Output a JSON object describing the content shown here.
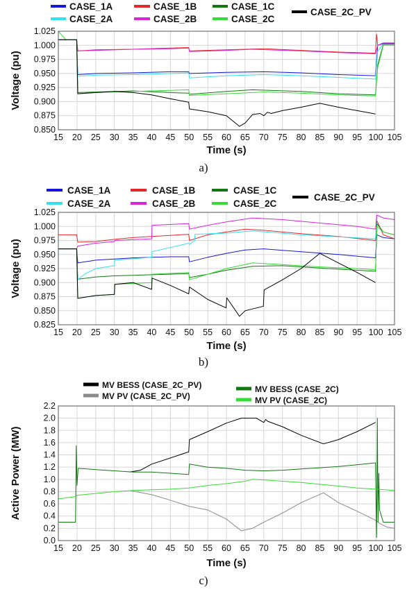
{
  "chart_data": [
    {
      "type": "line",
      "panel_label": "a)",
      "xlabel": "Time (s)",
      "ylabel": "Voltage (pu)",
      "xlim": [
        15,
        105
      ],
      "ylim": [
        0.85,
        1.025
      ],
      "xticks": [
        15,
        20,
        25,
        30,
        35,
        40,
        45,
        50,
        55,
        60,
        65,
        70,
        75,
        80,
        85,
        90,
        95,
        100,
        105
      ],
      "yticks": [
        "0.850",
        "0.875",
        "0.900",
        "0.925",
        "0.950",
        "0.975",
        "1.000",
        "1.025"
      ],
      "grid": true,
      "legend": {
        "location": "top",
        "entries": [
          "CASE_1A",
          "CASE_1B",
          "CASE_1C",
          "CASE_2A",
          "CASE_2B",
          "CASE_2C",
          "CASE_2C_PV"
        ]
      },
      "series": [
        {
          "name": "CASE_1A",
          "color": "#1515dd",
          "x": [
            15,
            17,
            19.9,
            20.2,
            25,
            35,
            45,
            49.9,
            50.1,
            60,
            70,
            80,
            90,
            99.9,
            100.5,
            102,
            105
          ],
          "y": [
            1.01,
            1.01,
            1.01,
            0.948,
            0.95,
            0.951,
            0.953,
            0.953,
            0.95,
            0.952,
            0.953,
            0.951,
            0.948,
            0.946,
            1.0,
            1.004,
            1.004
          ]
        },
        {
          "name": "CASE_1B",
          "color": "#e8262a",
          "x": [
            15,
            17,
            19.9,
            20.2,
            25,
            35,
            45,
            49.9,
            50.1,
            60,
            70,
            80,
            90,
            99.9,
            100.2,
            100.5,
            102,
            105
          ],
          "y": [
            1.01,
            1.01,
            1.01,
            0.99,
            0.992,
            0.993,
            0.995,
            0.996,
            0.99,
            0.992,
            0.994,
            0.991,
            0.988,
            0.986,
            1.02,
            1.0,
            1.003,
            1.003
          ]
        },
        {
          "name": "CASE_1C",
          "color": "#117711",
          "x": [
            15,
            17,
            19.9,
            20.2,
            25,
            35,
            45,
            49.9,
            50.1,
            60,
            67,
            80,
            90,
            99.9,
            100.5,
            102,
            105
          ],
          "y": [
            1.01,
            1.01,
            1.01,
            0.916,
            0.917,
            0.919,
            0.916,
            0.915,
            0.913,
            0.918,
            0.921,
            0.918,
            0.914,
            0.912,
            0.965,
            1.002,
            1.002
          ]
        },
        {
          "name": "CASE_2A",
          "color": "#33e0ee",
          "x": [
            15,
            17,
            19.9,
            20.2,
            25,
            35,
            45,
            49.9,
            50.1,
            60,
            70,
            80,
            90,
            99.9,
            100.5,
            102,
            105
          ],
          "y": [
            1.01,
            1.01,
            1.01,
            0.945,
            0.947,
            0.948,
            0.95,
            0.951,
            0.942,
            0.946,
            0.948,
            0.946,
            0.943,
            0.94,
            0.99,
            1.003,
            1.003
          ]
        },
        {
          "name": "CASE_2B",
          "color": "#dd22dd",
          "x": [
            15,
            17,
            19.9,
            20.2,
            25,
            35,
            45,
            49.9,
            50.1,
            60,
            67,
            80,
            90,
            99.9,
            100.5,
            102,
            105
          ],
          "y": [
            1.01,
            1.01,
            1.01,
            0.99,
            0.991,
            0.993,
            0.994,
            0.995,
            0.989,
            0.991,
            0.993,
            0.99,
            0.987,
            0.985,
            1.0,
            1.003,
            1.003
          ]
        },
        {
          "name": "CASE_2C",
          "color": "#33dd33",
          "x": [
            15,
            17,
            19.9,
            20.2,
            25,
            35,
            45,
            49.9,
            50.1,
            60,
            70,
            80,
            90,
            99.9,
            100.5,
            102,
            105
          ],
          "y": [
            1.025,
            1.01,
            1.01,
            0.914,
            0.916,
            0.918,
            0.92,
            0.921,
            0.911,
            0.914,
            0.917,
            0.915,
            0.912,
            0.91,
            0.96,
            1.0,
            1.0
          ]
        },
        {
          "name": "CASE_2C_PV",
          "color": "#000000",
          "x": [
            15,
            17,
            19.9,
            20.2,
            25,
            30,
            35,
            40,
            45,
            49.9,
            50.1,
            55,
            60,
            63.5,
            65,
            67,
            69,
            70,
            71,
            72,
            75,
            80,
            85,
            90,
            95,
            99.9
          ],
          "y": [
            1.01,
            1.01,
            1.01,
            0.914,
            0.916,
            0.918,
            0.916,
            0.912,
            0.905,
            0.899,
            0.887,
            0.882,
            0.875,
            0.856,
            0.862,
            0.877,
            0.879,
            0.875,
            0.881,
            0.879,
            0.884,
            0.89,
            0.897,
            0.89,
            0.884,
            0.878
          ]
        }
      ]
    },
    {
      "type": "line",
      "panel_label": "b)",
      "xlabel": "Time (s)",
      "ylabel": "Voltage (pu)",
      "xlim": [
        15,
        105
      ],
      "ylim": [
        0.825,
        1.025
      ],
      "xticks": [
        15,
        20,
        25,
        30,
        35,
        40,
        45,
        50,
        55,
        60,
        65,
        70,
        75,
        80,
        85,
        90,
        95,
        100,
        105
      ],
      "yticks": [
        "0.825",
        "0.850",
        "0.875",
        "0.900",
        "0.925",
        "0.950",
        "0.975",
        "1.000",
        "1.025"
      ],
      "grid": true,
      "legend": {
        "location": "top",
        "entries": [
          "CASE_1A",
          "CASE_1B",
          "CASE_1C",
          "CASE_2A",
          "CASE_2B",
          "CASE_2C",
          "CASE_2C_PV"
        ]
      },
      "series": [
        {
          "name": "CASE_1A",
          "color": "#1515dd",
          "x": [
            15,
            17,
            19.9,
            20.2,
            25,
            30,
            35,
            40,
            45,
            49.9,
            50.1,
            55,
            60,
            65,
            70,
            80,
            90,
            99.9,
            100.3,
            102,
            105
          ],
          "y": [
            0.96,
            0.96,
            0.96,
            0.935,
            0.94,
            0.942,
            0.944,
            0.945,
            0.946,
            0.946,
            0.937,
            0.945,
            0.952,
            0.958,
            0.96,
            0.955,
            0.95,
            0.944,
            0.985,
            0.98,
            0.978
          ]
        },
        {
          "name": "CASE_1B",
          "color": "#e8262a",
          "x": [
            15,
            17,
            19.9,
            20.2,
            25,
            30,
            35,
            40,
            45,
            49.9,
            50.1,
            55,
            60,
            65,
            70,
            80,
            90,
            99.9,
            100.3,
            102,
            105
          ],
          "y": [
            0.985,
            0.985,
            0.985,
            0.972,
            0.973,
            0.977,
            0.98,
            0.982,
            0.984,
            0.986,
            0.975,
            0.985,
            0.99,
            0.995,
            0.993,
            0.987,
            0.982,
            0.975,
            1.01,
            0.985,
            0.978
          ]
        },
        {
          "name": "CASE_1C",
          "color": "#117711",
          "x": [
            15,
            17,
            19.9,
            20.2,
            25,
            30,
            35,
            40,
            45,
            49.9,
            50.1,
            55,
            60,
            67,
            75,
            85,
            95,
            99.9,
            100.3,
            102,
            105
          ],
          "y": [
            0.96,
            0.96,
            0.96,
            0.906,
            0.91,
            0.912,
            0.913,
            0.914,
            0.915,
            0.916,
            0.909,
            0.915,
            0.922,
            0.929,
            0.93,
            0.926,
            0.922,
            0.92,
            1.005,
            0.99,
            0.985
          ]
        },
        {
          "name": "CASE_2A",
          "color": "#33e0ee",
          "x": [
            15,
            17,
            19.9,
            20.2,
            22,
            25,
            30,
            30.1,
            40,
            40.1,
            49.9,
            50.1,
            51.5,
            51.6,
            60,
            67,
            80,
            99.9,
            100.3,
            102,
            105
          ],
          "y": [
            0.96,
            0.96,
            0.96,
            0.905,
            0.915,
            0.925,
            0.93,
            0.94,
            0.945,
            0.955,
            0.97,
            0.968,
            0.975,
            0.986,
            0.988,
            0.992,
            0.985,
            0.978,
            1.02,
            1.015,
            1.012
          ]
        },
        {
          "name": "CASE_2B",
          "color": "#dd22dd",
          "x": [
            15,
            17,
            19.9,
            20.2,
            25,
            30,
            30.1,
            40,
            40.1,
            49.9,
            50.1,
            55,
            60,
            67,
            75,
            85,
            95,
            99.9,
            100.3,
            102,
            105
          ],
          "y": [
            0.96,
            0.96,
            0.96,
            0.965,
            0.97,
            0.973,
            0.975,
            0.978,
            1.002,
            1.005,
            0.995,
            1.002,
            1.008,
            1.015,
            1.012,
            1.006,
            1.0,
            0.995,
            1.02,
            1.015,
            1.012
          ]
        },
        {
          "name": "CASE_2C",
          "color": "#33dd33",
          "x": [
            15,
            17,
            19.9,
            20.2,
            25,
            30,
            30.1,
            40,
            40.1,
            49.9,
            50.1,
            55,
            60,
            67,
            75,
            85,
            95,
            99.9,
            100.3,
            102,
            105
          ],
          "y": [
            0.96,
            0.96,
            0.96,
            0.872,
            0.877,
            0.879,
            0.897,
            0.9,
            0.915,
            0.918,
            0.905,
            0.915,
            0.925,
            0.935,
            0.932,
            0.928,
            0.925,
            0.923,
            1.0,
            0.99,
            0.985
          ]
        },
        {
          "name": "CASE_2C_PV",
          "color": "#000000",
          "x": [
            15,
            17,
            19.9,
            20.2,
            25,
            30,
            30.1,
            35,
            40,
            40.1,
            45,
            49.9,
            50.1,
            55,
            59.9,
            60.1,
            63.5,
            65,
            69.9,
            70.1,
            75,
            80,
            85,
            90,
            95,
            99.9
          ],
          "y": [
            0.96,
            0.96,
            0.96,
            0.872,
            0.877,
            0.879,
            0.897,
            0.9,
            0.888,
            0.908,
            0.895,
            0.88,
            0.892,
            0.87,
            0.855,
            0.873,
            0.84,
            0.85,
            0.858,
            0.887,
            0.905,
            0.925,
            0.952,
            0.935,
            0.918,
            0.9
          ]
        }
      ]
    },
    {
      "type": "line",
      "panel_label": "c)",
      "xlabel": "Time (s)",
      "ylabel": "Active Power (MW)",
      "xlim": [
        15,
        105
      ],
      "ylim": [
        0.0,
        2.2
      ],
      "xticks": [
        15,
        20,
        25,
        30,
        35,
        40,
        45,
        50,
        55,
        60,
        65,
        70,
        75,
        80,
        85,
        90,
        95,
        100,
        105
      ],
      "yticks": [
        "0.0",
        "0.2",
        "0.4",
        "0.6",
        "0.8",
        "1.0",
        "1.2",
        "1.4",
        "1.6",
        "1.8",
        "2.0",
        "2.2"
      ],
      "grid": true,
      "legend": {
        "location": "top",
        "entries": [
          "MV BESS (CASE_2C_PV)",
          "MV PV (CASE_2C_PV)",
          "MV BESS (CASE_2C)",
          "MV PV (CASE_2C)"
        ]
      },
      "series": [
        {
          "name": "MV BESS (CASE_2C_PV)",
          "color": "#000000",
          "x": [
            34,
            37,
            40,
            45,
            49.9,
            50.1,
            55,
            60,
            64,
            68,
            70,
            70.5,
            71,
            75,
            80,
            86,
            90,
            95,
            99.9
          ],
          "y": [
            1.12,
            1.15,
            1.25,
            1.35,
            1.45,
            1.65,
            1.78,
            1.92,
            2.0,
            2.0,
            1.93,
            1.98,
            1.95,
            1.86,
            1.72,
            1.58,
            1.65,
            1.78,
            1.93
          ]
        },
        {
          "name": "MV PV (CASE_2C_PV)",
          "color": "#8a8a8a",
          "x": [
            34,
            40,
            45,
            50,
            55,
            60,
            64,
            67,
            70,
            75,
            80,
            86,
            90,
            95,
            100,
            101,
            103,
            105
          ],
          "y": [
            0.82,
            0.75,
            0.66,
            0.56,
            0.5,
            0.35,
            0.16,
            0.2,
            0.3,
            0.45,
            0.62,
            0.78,
            0.62,
            0.48,
            0.33,
            0.28,
            0.22,
            0.2
          ]
        },
        {
          "name": "MV BESS (CASE_2C)",
          "color": "#117711",
          "x": [
            15,
            19.6,
            19.8,
            20,
            20.3,
            25,
            30,
            35,
            40,
            45,
            49.9,
            50.1,
            55,
            60,
            65,
            70,
            75,
            80,
            85,
            90,
            95,
            99.9,
            100.2,
            100.4,
            100.6,
            100.8,
            101,
            102,
            105
          ],
          "y": [
            0.3,
            0.3,
            1.55,
            0.9,
            1.18,
            1.16,
            1.14,
            1.12,
            1.12,
            1.1,
            1.08,
            1.25,
            1.2,
            1.18,
            1.15,
            1.14,
            1.15,
            1.17,
            1.19,
            1.21,
            1.24,
            1.27,
            0.05,
            2.0,
            0.3,
            1.1,
            0.5,
            0.3,
            0.3
          ]
        },
        {
          "name": "MV PV (CASE_2C)",
          "color": "#33dd33",
          "x": [
            15,
            19.7,
            20,
            25,
            30,
            35,
            40,
            45,
            50,
            55,
            60,
            65,
            67,
            70,
            75,
            80,
            85,
            90,
            95,
            100,
            105
          ],
          "y": [
            0.68,
            0.72,
            0.74,
            0.77,
            0.8,
            0.82,
            0.83,
            0.84,
            0.86,
            0.9,
            0.93,
            0.97,
            1.0,
            0.99,
            0.97,
            0.95,
            0.92,
            0.89,
            0.86,
            0.84,
            0.82
          ]
        }
      ]
    }
  ]
}
